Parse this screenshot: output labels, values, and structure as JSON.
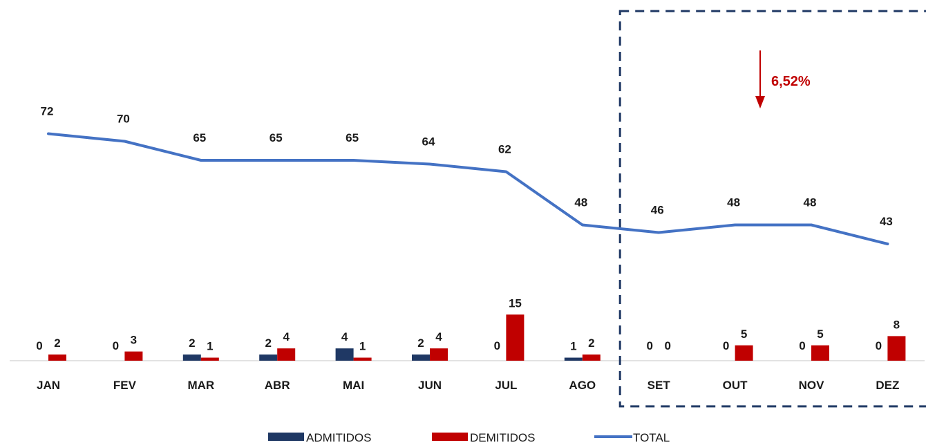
{
  "chart_data": {
    "type": "bar",
    "categories": [
      "JAN",
      "FEV",
      "MAR",
      "ABR",
      "MAI",
      "JUN",
      "JUL",
      "AGO",
      "SET",
      "OUT",
      "NOV",
      "DEZ"
    ],
    "series": [
      {
        "name": "ADMITIDOS",
        "type": "bar",
        "color": "#1f3864",
        "values": [
          0,
          0,
          2,
          2,
          4,
          2,
          0,
          1,
          0,
          0,
          0,
          0
        ]
      },
      {
        "name": "DEMITIDOS",
        "type": "bar",
        "color": "#c00000",
        "values": [
          2,
          3,
          1,
          4,
          1,
          4,
          15,
          2,
          0,
          5,
          5,
          8
        ]
      },
      {
        "name": "TOTAL",
        "type": "line",
        "color": "#4472c4",
        "values": [
          72,
          70,
          65,
          65,
          65,
          64,
          62,
          48,
          46,
          48,
          48,
          43
        ]
      }
    ],
    "annotation": {
      "text": "6,52%",
      "color": "#c00000",
      "direction": "down"
    },
    "highlight": {
      "categories": [
        "SET",
        "OUT",
        "NOV",
        "DEZ"
      ],
      "style": "dashed",
      "color": "#1f3864"
    },
    "legend": {
      "position": "bottom"
    },
    "grid": false
  }
}
